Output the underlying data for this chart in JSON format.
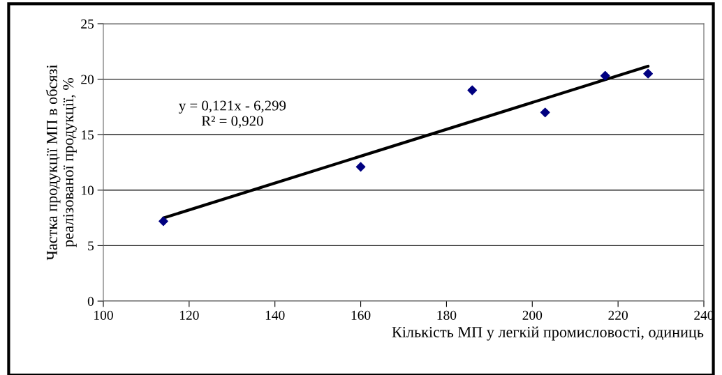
{
  "chart_data": {
    "type": "scatter",
    "xlabel": "Кількість МП у легкій промисловості, одиниць",
    "ylabel": "Частка продукції МП в обсязі\nреалізованої продукції, %",
    "x": [
      114,
      160,
      186,
      203,
      217,
      227
    ],
    "series": [
      {
        "color": "#000080",
        "marker": "diamond",
        "values": [
          7.2,
          12.1,
          19.0,
          17.0,
          20.3,
          20.5
        ]
      },
      {
        "type": "line",
        "color": "#000000",
        "marker": "none",
        "line_style": "solid",
        "x": [
          114,
          227
        ],
        "values": [
          7.49,
          21.17
        ]
      }
    ],
    "annotations": [
      "y = 0,121x - 6,299",
      "R² = 0,920"
    ],
    "xlim": [
      100,
      240
    ],
    "xticks": [
      100,
      120,
      140,
      160,
      180,
      200,
      220,
      240
    ],
    "ylim": [
      0,
      25
    ],
    "yticks": [
      0,
      5,
      10,
      15,
      20,
      25
    ],
    "grid": "y"
  }
}
